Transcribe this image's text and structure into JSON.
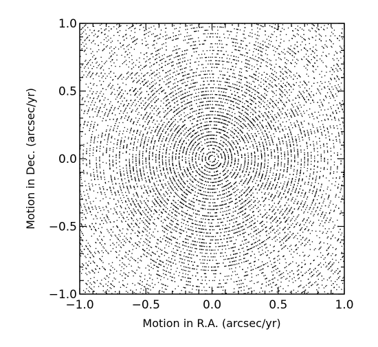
{
  "chart_data": {
    "type": "scatter",
    "title": "",
    "xlabel": "Motion in R.A. (arcsec/yr)",
    "ylabel": "Motion in Dec. (arcsec/yr)",
    "xlim": [
      -1.0,
      1.0
    ],
    "ylim": [
      -1.0,
      1.0
    ],
    "x_ticks": [
      -1.0,
      -0.5,
      0.0,
      0.5,
      1.0
    ],
    "y_ticks": [
      -1.0,
      -0.5,
      0.0,
      0.5,
      1.0
    ],
    "x_tick_labels": [
      "−1.0",
      "−0.5",
      "0.0",
      "0.5",
      "1.0"
    ],
    "y_tick_labels": [
      "−1.0",
      "−0.5",
      "0.0",
      "0.5",
      "1.0"
    ],
    "grid": false,
    "legend": "none",
    "pattern": "concentric-rings",
    "ring_center": [
      0.0,
      0.0
    ],
    "ring_radius_step": 0.025,
    "ring_radius_max": 1.5,
    "point_color": "#000000"
  }
}
